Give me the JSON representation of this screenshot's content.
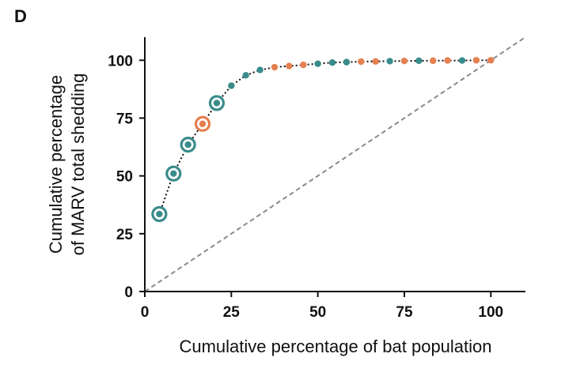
{
  "panel_label": "D",
  "colors": {
    "teal": "#3a8c8c",
    "orange": "#e58050",
    "reference": "#8a8a8a",
    "axis": "#111111"
  },
  "chart_data": {
    "type": "line",
    "title": "",
    "xlabel": "Cumulative percentage of bat population",
    "ylabel_lines": [
      "Cumulative percentage",
      "of MARV total shedding"
    ],
    "xlim": [
      0,
      110
    ],
    "ylim": [
      0,
      110
    ],
    "xticks": [
      0,
      25,
      50,
      75,
      100
    ],
    "yticks": [
      0,
      25,
      50,
      75,
      100
    ],
    "grid": false,
    "legend": "none",
    "reference_line": {
      "from": [
        0,
        0
      ],
      "to": [
        110,
        110
      ],
      "style": "dashed"
    },
    "series": [
      {
        "points": [
          {
            "x": 4.2,
            "y": 33.5,
            "color": "teal",
            "ringed": true
          },
          {
            "x": 8.3,
            "y": 51.0,
            "color": "teal",
            "ringed": true
          },
          {
            "x": 12.5,
            "y": 63.5,
            "color": "teal",
            "ringed": true
          },
          {
            "x": 16.7,
            "y": 72.5,
            "color": "orange",
            "ringed": true
          },
          {
            "x": 20.8,
            "y": 81.5,
            "color": "teal",
            "ringed": true
          },
          {
            "x": 25.0,
            "y": 89.0,
            "color": "teal",
            "ringed": false
          },
          {
            "x": 29.2,
            "y": 93.5,
            "color": "teal",
            "ringed": false
          },
          {
            "x": 33.3,
            "y": 95.8,
            "color": "teal",
            "ringed": false
          },
          {
            "x": 37.5,
            "y": 97.0,
            "color": "orange",
            "ringed": false
          },
          {
            "x": 41.7,
            "y": 97.5,
            "color": "orange",
            "ringed": false
          },
          {
            "x": 45.8,
            "y": 98.0,
            "color": "orange",
            "ringed": false
          },
          {
            "x": 50.0,
            "y": 98.5,
            "color": "teal",
            "ringed": false
          },
          {
            "x": 54.2,
            "y": 99.0,
            "color": "teal",
            "ringed": false
          },
          {
            "x": 58.3,
            "y": 99.2,
            "color": "teal",
            "ringed": false
          },
          {
            "x": 62.5,
            "y": 99.4,
            "color": "orange",
            "ringed": false
          },
          {
            "x": 66.7,
            "y": 99.5,
            "color": "orange",
            "ringed": false
          },
          {
            "x": 70.8,
            "y": 99.6,
            "color": "teal",
            "ringed": false
          },
          {
            "x": 75.0,
            "y": 99.7,
            "color": "orange",
            "ringed": false
          },
          {
            "x": 79.2,
            "y": 99.8,
            "color": "teal",
            "ringed": false
          },
          {
            "x": 83.3,
            "y": 99.8,
            "color": "orange",
            "ringed": false
          },
          {
            "x": 87.5,
            "y": 99.9,
            "color": "orange",
            "ringed": false
          },
          {
            "x": 91.7,
            "y": 99.9,
            "color": "teal",
            "ringed": false
          },
          {
            "x": 95.8,
            "y": 100.0,
            "color": "orange",
            "ringed": false
          },
          {
            "x": 100.0,
            "y": 100.0,
            "color": "orange",
            "ringed": false
          }
        ]
      }
    ]
  }
}
